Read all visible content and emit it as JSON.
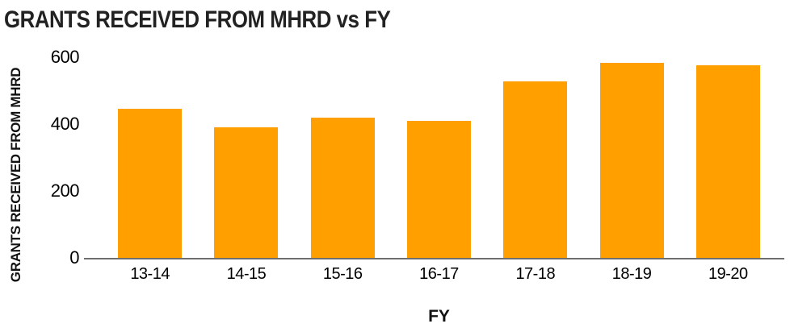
{
  "chart_data": {
    "type": "bar",
    "title": "GRANTS RECEIVED FROM MHRD vs FY",
    "xlabel": "FY",
    "ylabel": "GRANTS RECEIVED FROM MHRD",
    "categories": [
      "13-14",
      "14-15",
      "15-16",
      "16-17",
      "17-18",
      "18-19",
      "19-20"
    ],
    "values": [
      445,
      390,
      420,
      410,
      527,
      582,
      577
    ],
    "yticks": [
      0,
      200,
      400,
      600
    ],
    "ylim": [
      0,
      600
    ],
    "grid": "off",
    "legend": "none",
    "bar_color": "#FFA000",
    "axis_color": "#6E6E6E",
    "text_color": "#1A1A1A"
  }
}
